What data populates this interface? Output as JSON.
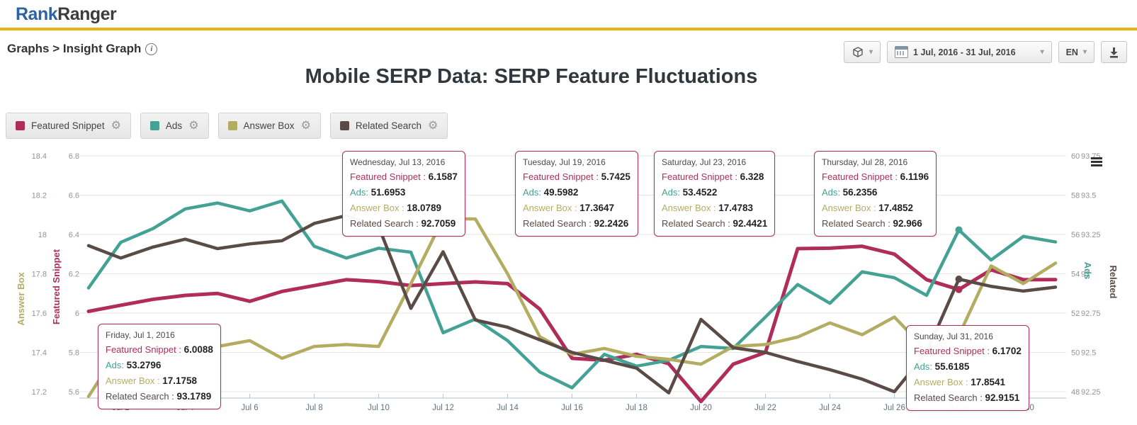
{
  "header": {
    "logo_rank": "Rank",
    "logo_ranger": "Ranger"
  },
  "toolbar": {
    "breadcrumb": "Graphs > Insight Graph",
    "date_range": "1 Jul, 2016 - 31 Jul, 2016",
    "language": "EN"
  },
  "title": "Mobile SERP Data: SERP Feature Fluctuations",
  "icons": {
    "gear": "⚙",
    "caret": "▾",
    "info": "i"
  },
  "colors": {
    "accent_yellow": "#eab117",
    "logo_blue": "#2d62a7",
    "featured_snippet": "#b02d59",
    "ads": "#43a294",
    "answer_box": "#b3ad62",
    "related_search": "#5b4b47"
  },
  "legend": [
    {
      "label": "Featured Snippet",
      "color": "#b02d59"
    },
    {
      "label": "Ads",
      "color": "#43a294"
    },
    {
      "label": "Answer Box",
      "color": "#b3ad62"
    },
    {
      "label": "Related Search",
      "color": "#5b4b47"
    }
  ],
  "tooltip_labels": {
    "featured_snippet": "Featured Snippet : ",
    "ads": "Ads: ",
    "answer_box": "Answer Box : ",
    "related_search": "Related Search : "
  },
  "tooltips": [
    {
      "date": "Friday, Jul 1, 2016",
      "featured_snippet": "6.0088",
      "ads": "53.2796",
      "answer_box": "17.1758",
      "related_search": "93.1789"
    },
    {
      "date": "Wednesday, Jul 13, 2016",
      "featured_snippet": "6.1587",
      "ads": "51.6953",
      "answer_box": "18.0789",
      "related_search": "92.7059"
    },
    {
      "date": "Tuesday, Jul 19, 2016",
      "featured_snippet": "5.7425",
      "ads": "49.5982",
      "answer_box": "17.3647",
      "related_search": "92.2426"
    },
    {
      "date": "Saturday, Jul 23, 2016",
      "featured_snippet": "6.328",
      "ads": "53.4522",
      "answer_box": "17.4783",
      "related_search": "92.4421"
    },
    {
      "date": "Thursday, Jul 28, 2016",
      "featured_snippet": "6.1196",
      "ads": "56.2356",
      "answer_box": "17.4852",
      "related_search": "92.966"
    },
    {
      "date": "Sunday, Jul 31, 2016",
      "featured_snippet": "6.1702",
      "ads": "55.6185",
      "answer_box": "17.8541",
      "related_search": "92.9151"
    }
  ],
  "chart_data": {
    "type": "line",
    "title": "Mobile SERP Data: SERP Feature Fluctuations",
    "days": 31,
    "x_tick_days": [
      2,
      4,
      6,
      8,
      10,
      12,
      14,
      16,
      18,
      20,
      22,
      24,
      26,
      28,
      30
    ],
    "x_tick_labels": [
      "Jul 2",
      "Jul 4",
      "Jul 6",
      "Jul 8",
      "Jul 10",
      "Jul 12",
      "Jul 14",
      "Jul 16",
      "Jul 18",
      "Jul 20",
      "Jul 22",
      "Jul 24",
      "Jul 26",
      "Jul 28",
      "Jul 30"
    ],
    "grid": true,
    "legend_position": "top",
    "marker_day": 28,
    "axes": {
      "answer_box": {
        "side": "left-outer",
        "title": "Answer Box",
        "color": "#b3ad62",
        "min": 17.2,
        "max": 18.4,
        "ticks": [
          "18.4",
          "18.2",
          "18",
          "17.8",
          "17.6",
          "17.4",
          "17.2"
        ]
      },
      "featured_snippet": {
        "side": "left-inner",
        "title": "Featured Snippet",
        "color": "#b02d59",
        "min": 5.6,
        "max": 6.8,
        "ticks": [
          "6.8",
          "6.6",
          "6.4",
          "6.2",
          "6",
          "5.8",
          "5.6"
        ]
      },
      "ads": {
        "side": "right-inner",
        "title": "Ads",
        "color": "#43a294",
        "min": 48,
        "max": 60,
        "ticks": [
          "60",
          "58",
          "56",
          "54",
          "52",
          "50",
          "48"
        ]
      },
      "related_search": {
        "side": "right-outer",
        "title": "Related",
        "color": "#5b4b47",
        "min": 92.25,
        "max": 93.75,
        "ticks": [
          "93.75",
          "93.5",
          "93.25",
          "93",
          "92.75",
          "92.5",
          "92.25"
        ]
      }
    },
    "series": [
      {
        "name": "Featured Snippet",
        "axis": "featured_snippet",
        "color": "#b02d59",
        "width": 5,
        "values": [
          6.0088,
          6.04,
          6.07,
          6.09,
          6.1,
          6.06,
          6.11,
          6.14,
          6.17,
          6.16,
          6.14,
          6.15,
          6.1587,
          6.15,
          6.02,
          5.77,
          5.76,
          5.79,
          5.7425,
          5.55,
          5.74,
          5.8,
          6.328,
          6.33,
          6.34,
          6.3,
          6.17,
          6.1196,
          6.22,
          6.17,
          6.1702
        ]
      },
      {
        "name": "Ads",
        "axis": "ads",
        "color": "#43a294",
        "width": 4.5,
        "values": [
          53.2796,
          55.6,
          56.3,
          57.3,
          57.6,
          57.2,
          57.7,
          55.4,
          54.8,
          55.3,
          55.1,
          51.0,
          51.6953,
          50.6,
          49.0,
          48.2,
          49.9,
          49.3,
          49.5982,
          50.3,
          50.2,
          51.8,
          53.4522,
          52.5,
          54.1,
          53.8,
          52.9,
          56.2356,
          54.7,
          55.9,
          55.6185
        ]
      },
      {
        "name": "Answer Box",
        "axis": "answer_box",
        "color": "#b3ad62",
        "width": 4.5,
        "values": [
          17.1758,
          17.43,
          17.46,
          17.45,
          17.43,
          17.46,
          17.37,
          17.43,
          17.44,
          17.43,
          17.75,
          18.08,
          18.0789,
          17.8,
          17.48,
          17.39,
          17.42,
          17.38,
          17.3647,
          17.34,
          17.43,
          17.44,
          17.4783,
          17.55,
          17.49,
          17.58,
          17.41,
          17.4852,
          17.84,
          17.75,
          17.8541
        ]
      },
      {
        "name": "Related Search",
        "axis": "related_search",
        "color": "#5b4b47",
        "width": 4.5,
        "values": [
          93.1789,
          93.1,
          93.17,
          93.22,
          93.16,
          93.19,
          93.21,
          93.32,
          93.37,
          93.3,
          92.78,
          93.14,
          92.7059,
          92.66,
          92.58,
          92.5,
          92.45,
          92.4,
          92.2426,
          92.71,
          92.53,
          92.5,
          92.4421,
          92.39,
          92.33,
          92.25,
          92.5,
          92.966,
          92.92,
          92.89,
          92.9151
        ]
      }
    ]
  }
}
